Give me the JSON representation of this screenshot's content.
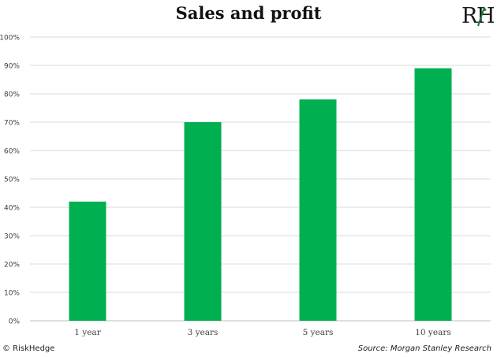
{
  "title": "Sales and profit",
  "logo": {
    "text": "RH",
    "icon": "riskhedge-logo-icon"
  },
  "footer": {
    "copyright": "© RiskHedge",
    "source": "Source: Morgan Stanley Research"
  },
  "colors": {
    "bar": "#00b050",
    "grid": "#d9d9d9",
    "axis": "#bfbfbf",
    "tick": "#404040",
    "logo_green": "#1a7a3a"
  },
  "chart_data": {
    "type": "bar",
    "categories": [
      "1 year",
      "3 years",
      "5 years",
      "10 years"
    ],
    "values": [
      42,
      70,
      78,
      89
    ],
    "title": "Sales and profit",
    "xlabel": "",
    "ylabel": "",
    "ylim": [
      0,
      100
    ],
    "ytick_values": [
      0,
      10,
      20,
      30,
      40,
      50,
      60,
      70,
      80,
      90,
      100
    ],
    "ytick_labels": [
      "0%",
      "10%",
      "20%",
      "30%",
      "40%",
      "50%",
      "60%",
      "70%",
      "80%",
      "90%",
      "100%"
    ],
    "grid": true,
    "legend": "none"
  }
}
